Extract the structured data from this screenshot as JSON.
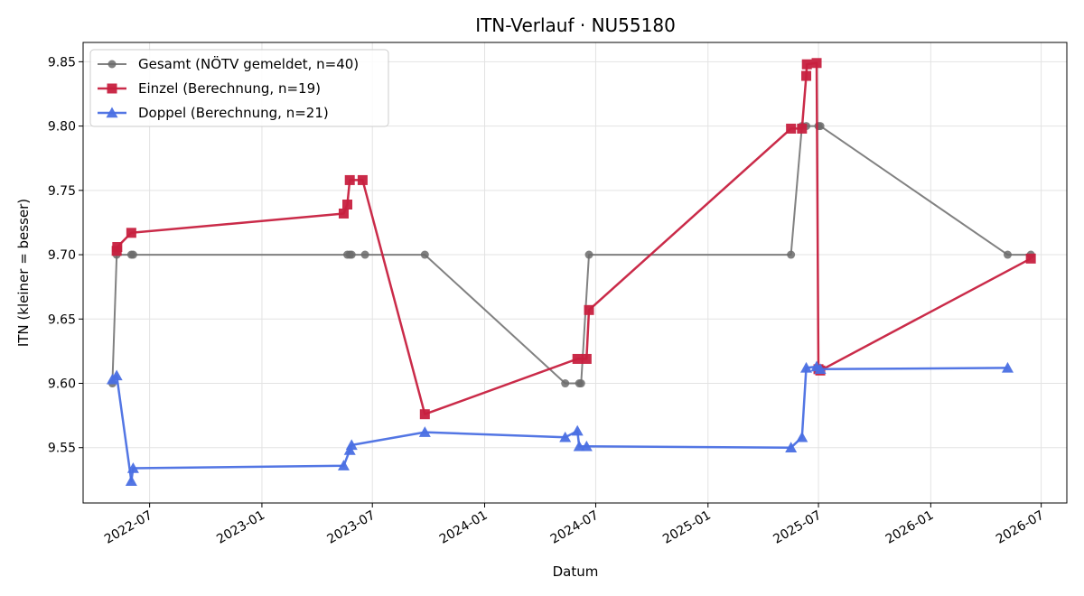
{
  "chart_data": {
    "type": "line",
    "title": "ITN-Verlauf · NU55180",
    "xlabel": "Datum",
    "ylabel": "ITN  (kleiner = besser)",
    "xlim": [
      "2022-03-14",
      "2026-08-12"
    ],
    "ylim": [
      9.507,
      9.865
    ],
    "x_ticks": [
      "2022-07",
      "2023-01",
      "2023-07",
      "2024-01",
      "2024-07",
      "2025-01",
      "2025-07",
      "2026-01",
      "2026-07"
    ],
    "y_ticks": [
      "9.55",
      "9.60",
      "9.65",
      "9.70",
      "9.75",
      "9.80",
      "9.85"
    ],
    "grid": true,
    "legend_position": "top-left",
    "series": [
      {
        "name": "Gesamt (NÖTV gemeldet, n=40)",
        "color": "#6b6b6b",
        "marker": "circle",
        "points": [
          {
            "x": "2022-05-01",
            "y": 9.6
          },
          {
            "x": "2022-05-08",
            "y": 9.7
          },
          {
            "x": "2022-06-01",
            "y": 9.7
          },
          {
            "x": "2022-06-04",
            "y": 9.7
          },
          {
            "x": "2023-05-21",
            "y": 9.7
          },
          {
            "x": "2023-05-25",
            "y": 9.7
          },
          {
            "x": "2023-05-28",
            "y": 9.7
          },
          {
            "x": "2023-06-19",
            "y": 9.7
          },
          {
            "x": "2023-09-25",
            "y": 9.7
          },
          {
            "x": "2024-05-12",
            "y": 9.6
          },
          {
            "x": "2024-06-04",
            "y": 9.6
          },
          {
            "x": "2024-06-07",
            "y": 9.6
          },
          {
            "x": "2024-06-20",
            "y": 9.7
          },
          {
            "x": "2025-05-17",
            "y": 9.7
          },
          {
            "x": "2025-06-04",
            "y": 9.8
          },
          {
            "x": "2025-06-11",
            "y": 9.8
          },
          {
            "x": "2025-07-01",
            "y": 9.8
          },
          {
            "x": "2025-07-04",
            "y": 9.8
          },
          {
            "x": "2026-05-07",
            "y": 9.7
          },
          {
            "x": "2026-06-14",
            "y": 9.7
          }
        ]
      },
      {
        "name": "Einzel (Berechnung, n=19)",
        "color": "#c7203f",
        "marker": "square",
        "points": [
          {
            "x": "2022-05-08",
            "y": 9.703
          },
          {
            "x": "2022-05-09",
            "y": 9.706
          },
          {
            "x": "2022-06-01",
            "y": 9.717
          },
          {
            "x": "2023-05-15",
            "y": 9.732
          },
          {
            "x": "2023-05-21",
            "y": 9.739
          },
          {
            "x": "2023-05-25",
            "y": 9.758
          },
          {
            "x": "2023-06-15",
            "y": 9.758
          },
          {
            "x": "2023-09-25",
            "y": 9.576
          },
          {
            "x": "2024-06-01",
            "y": 9.619
          },
          {
            "x": "2024-06-16",
            "y": 9.619
          },
          {
            "x": "2024-06-20",
            "y": 9.657
          },
          {
            "x": "2025-05-17",
            "y": 9.798
          },
          {
            "x": "2025-06-04",
            "y": 9.798
          },
          {
            "x": "2025-06-11",
            "y": 9.839
          },
          {
            "x": "2025-06-12",
            "y": 9.848
          },
          {
            "x": "2025-06-28",
            "y": 9.849
          },
          {
            "x": "2025-07-01",
            "y": 9.611
          },
          {
            "x": "2025-07-04",
            "y": 9.61
          },
          {
            "x": "2026-06-14",
            "y": 9.697
          }
        ]
      },
      {
        "name": "Doppel (Berechnung, n=21)",
        "color": "#4a6fe3",
        "marker": "triangle",
        "points": [
          {
            "x": "2022-05-01",
            "y": 9.603
          },
          {
            "x": "2022-05-08",
            "y": 9.606
          },
          {
            "x": "2022-06-01",
            "y": 9.524
          },
          {
            "x": "2022-06-04",
            "y": 9.534
          },
          {
            "x": "2023-05-15",
            "y": 9.536
          },
          {
            "x": "2023-05-25",
            "y": 9.548
          },
          {
            "x": "2023-05-28",
            "y": 9.552
          },
          {
            "x": "2023-09-25",
            "y": 9.562
          },
          {
            "x": "2024-05-12",
            "y": 9.558
          },
          {
            "x": "2024-06-01",
            "y": 9.563
          },
          {
            "x": "2024-06-04",
            "y": 9.551
          },
          {
            "x": "2024-06-16",
            "y": 9.551
          },
          {
            "x": "2025-05-17",
            "y": 9.55
          },
          {
            "x": "2025-06-04",
            "y": 9.558
          },
          {
            "x": "2025-06-11",
            "y": 9.612
          },
          {
            "x": "2025-06-28",
            "y": 9.613
          },
          {
            "x": "2025-07-04",
            "y": 9.611
          },
          {
            "x": "2026-05-07",
            "y": 9.612
          }
        ]
      }
    ]
  }
}
